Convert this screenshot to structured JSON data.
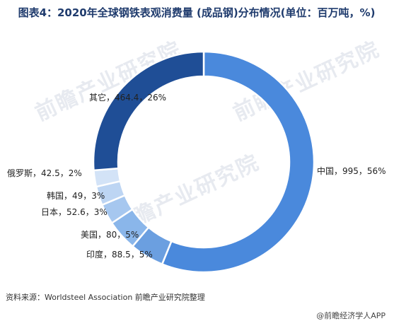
{
  "title": "图表4：2020年全球钢铁表观消费量 (成品钢)分布情况(单位：百万吨，%)",
  "source": "资料来源：Worldsteel Association 前瞻产业研究院整理",
  "brand": "@前瞻经济学人APP",
  "watermark": "前瞻产业研究院",
  "chart_data": {
    "type": "pie",
    "title": "图表4：2020年全球钢铁表观消费量 (成品钢)分布情况(单位：百万吨，%)",
    "slices": [
      {
        "name": "中国",
        "value": 995,
        "percent": "56%",
        "label": "中国，995，56%",
        "color": "#4a89dc"
      },
      {
        "name": "印度",
        "value": 88.5,
        "percent": "5%",
        "label": "印度，88.5，5%",
        "color": "#6b9fe0"
      },
      {
        "name": "美国",
        "value": 80,
        "percent": "5%",
        "label": "美国，80，5%",
        "color": "#8ab6ea"
      },
      {
        "name": "日本",
        "value": 52.6,
        "percent": "3%",
        "label": "日本，52.6，3%",
        "color": "#a6c7ef"
      },
      {
        "name": "韩国",
        "value": 49,
        "percent": "3%",
        "label": "韩国，49，3%",
        "color": "#bdd5f3"
      },
      {
        "name": "俄罗斯",
        "value": 42.5,
        "percent": "2%",
        "label": "俄罗斯，42.5，2%",
        "color": "#d3e3f7"
      },
      {
        "name": "其它",
        "value": 464.4,
        "percent": "26%",
        "label": "其它，464.4，26%",
        "color": "#1f4e96"
      }
    ]
  }
}
